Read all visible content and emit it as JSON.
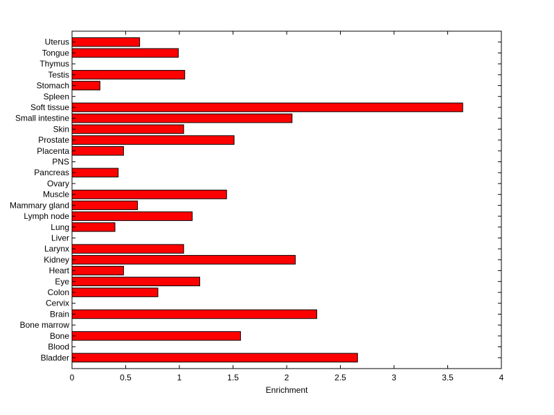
{
  "chart_data": {
    "type": "bar",
    "orientation": "horizontal",
    "title": "",
    "xlabel": "Enrichment",
    "ylabel": "",
    "xlim": [
      0,
      4
    ],
    "xticks": [
      "0",
      "0.5",
      "1",
      "1.5",
      "2",
      "2.5",
      "3",
      "3.5",
      "4"
    ],
    "grid": false,
    "legend": "none",
    "bar_color": "#ff0000",
    "categories": [
      "Uterus",
      "Tongue",
      "Thymus",
      "Testis",
      "Stomach",
      "Spleen",
      "Soft tissue",
      "Small intestine",
      "Skin",
      "Prostate",
      "Placenta",
      "PNS",
      "Pancreas",
      "Ovary",
      "Muscle",
      "Mammary gland",
      "Lymph node",
      "Lung",
      "Liver",
      "Larynx",
      "Kidney",
      "Heart",
      "Eye",
      "Colon",
      "Cervix",
      "Brain",
      "Bone marrow",
      "Bone",
      "Blood",
      "Bladder"
    ],
    "values": [
      0.63,
      0.99,
      0,
      1.05,
      0.26,
      0,
      3.64,
      2.05,
      1.04,
      1.51,
      0.48,
      0,
      0.43,
      0,
      1.44,
      0.61,
      1.12,
      0.4,
      0,
      1.04,
      2.08,
      0.48,
      1.19,
      0.8,
      0,
      2.28,
      0,
      1.57,
      0,
      2.66
    ]
  }
}
